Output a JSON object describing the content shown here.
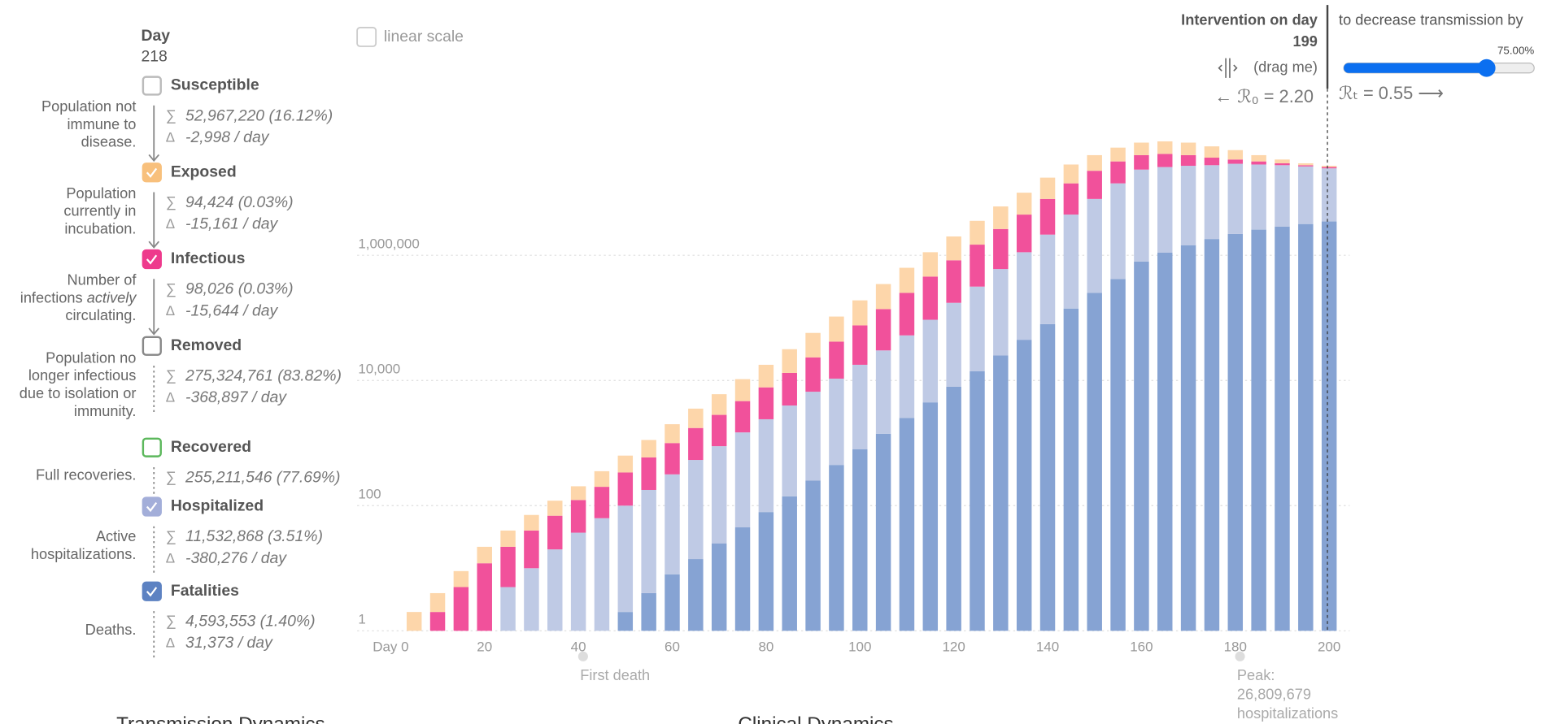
{
  "header": {
    "day_label": "Day",
    "day": 218,
    "linear_scale": "linear scale"
  },
  "panel": {
    "sum_symbol": "∑",
    "delta_symbol": "Δ",
    "compartments": [
      {
        "name": "Susceptible",
        "checked": false,
        "box_color": "#bbbbbb",
        "description": [
          [
            "Population not"
          ],
          [
            "immune to"
          ],
          [
            "disease."
          ]
        ],
        "sum": "52,967,220 (16.12%)",
        "delta": "-2,998 / day"
      },
      {
        "series": 3,
        "checked": true,
        "box_color": "#f8c07c",
        "description": [
          [
            "Population"
          ],
          [
            "currently in"
          ],
          [
            "incubation."
          ]
        ],
        "sum": "94,424 (0.03%)",
        "delta": "-15,161 / day"
      },
      {
        "series": 2,
        "checked": true,
        "box_color": "#ee3a8c",
        "description": [
          [
            "Number of"
          ],
          [
            "infections ",
            "actively"
          ],
          [
            "circulating."
          ]
        ],
        "sum": "98,026 (0.03%)",
        "delta": "-15,644 / day"
      },
      {
        "name": "Removed",
        "checked": false,
        "box_color": "#888888",
        "description": [
          [
            "Population no"
          ],
          [
            "longer infectious"
          ],
          [
            "due to isolation or"
          ],
          [
            "immunity."
          ]
        ],
        "sum": "275,324,761 (83.82%)",
        "delta": "-368,897 / day"
      },
      {
        "name": "Recovered",
        "checked": false,
        "box_color": "#5cb85c",
        "description": [
          [
            "Full recoveries."
          ]
        ],
        "sum": "255,211,546 (77.69%)"
      },
      {
        "series": 1,
        "checked": true,
        "box_color": "#a3aed9",
        "description": [
          [
            "Active"
          ],
          [
            "hospitalizations."
          ]
        ],
        "sum": "11,532,868 (3.51%)",
        "delta": "-380,276 / day"
      },
      {
        "series": 0,
        "checked": true,
        "box_color": "#5d82c2",
        "description": [
          [
            "Deaths."
          ]
        ],
        "sum": "4,593,553 (1.40%)",
        "delta": "31,373 / day"
      }
    ]
  },
  "intervention": {
    "title": "Intervention on day",
    "day": 199,
    "drag": "(drag me)",
    "r0": "← ℛ₀ = 2.20",
    "decrease": "to decrease transmission by",
    "strength": {
      "value": 75,
      "label": "75.00%"
    },
    "rt": "ℛₜ = 0.55 ⟶"
  },
  "chart_data": {
    "type": "stacked_bar",
    "log_scale": true,
    "grid": true,
    "x": [
      5,
      10,
      15,
      20,
      25,
      30,
      35,
      40,
      45,
      50,
      55,
      60,
      65,
      70,
      75,
      80,
      85,
      90,
      95,
      100,
      105,
      110,
      115,
      120,
      125,
      130,
      135,
      140,
      145,
      150,
      155,
      160,
      165,
      170,
      175,
      180,
      185,
      190,
      195,
      200
    ],
    "xlim": [
      0,
      200
    ],
    "xticks": [
      {
        "value": 0,
        "label": "Day 0"
      },
      20,
      40,
      60,
      80,
      100,
      120,
      140,
      160,
      180,
      200
    ],
    "ylim": [
      1,
      100000000
    ],
    "yticks": [
      1,
      100,
      {
        "value": 10000,
        "label": "10,000"
      },
      {
        "value": 1000000,
        "label": "1,000,000"
      }
    ],
    "series": [
      {
        "name": "Fatalities",
        "color": "#86a3d3",
        "values": [
          0,
          0,
          0,
          0,
          0,
          0,
          0,
          0,
          0,
          2,
          4,
          8,
          14,
          25,
          45,
          79,
          141,
          251,
          447,
          794,
          1410,
          2510,
          4470,
          7940,
          14100,
          25100,
          44700,
          79400,
          141000,
          251000,
          417000,
          794000,
          1100000,
          1450000,
          1820000,
          2190000,
          2570000,
          2880000,
          3160000,
          3470000
        ]
      },
      {
        "name": "Hospitalized",
        "color": "#bfcae5",
        "values": [
          0,
          0,
          0,
          0,
          5,
          10,
          20,
          37,
          63,
          98,
          174,
          308,
          523,
          866,
          1435,
          2321,
          3839,
          6359,
          10253,
          17006,
          28790,
          49990,
          88830,
          166060,
          301900,
          577900,
          1075300,
          2060600,
          4329000,
          7689000,
          13683000,
          22606000,
          24600000,
          25450000,
          25680000,
          26800000,
          25630000,
          24620000,
          23140000,
          21030000
        ]
      },
      {
        "name": "Infectious",
        "color": "#f1519b",
        "values": [
          0,
          2,
          5,
          12,
          17,
          30,
          49,
          86,
          137,
          239,
          412,
          684,
          1203,
          1929,
          3200,
          5360,
          9220,
          16790,
          31000,
          58100,
          107800,
          198500,
          363700,
          658000,
          1164000,
          2027000,
          3350000,
          5800000,
          9630000,
          14460000,
          17500000,
          16400000,
          16000000,
          12900000,
          8800000,
          4910000,
          3400000,
          2000000,
          1200000,
          1200000
        ]
      },
      {
        "name": "Exposed",
        "color": "#fdd6aa",
        "values": [
          2,
          2,
          4,
          10,
          18,
          31,
          51,
          81,
          155,
          291,
          530,
          1000,
          1810,
          3210,
          5820,
          10040,
          18400,
          34100,
          63300,
          114600,
          209000,
          380000,
          663000,
          1168000,
          2070000,
          3400000,
          5530000,
          9460000,
          14100000,
          17400000,
          20900000,
          23300000,
          24400000,
          23300000,
          18700000,
          14000000,
          8200000,
          4400000,
          2000000,
          1200000
        ]
      }
    ],
    "annotations": [
      {
        "day": 41,
        "lines": [
          "First death"
        ]
      },
      {
        "day": 181,
        "lines": [
          "Peak:",
          "26,809,679",
          "hospitalizations"
        ]
      }
    ],
    "section_titles": [
      "Transmission Dynamics",
      "Clinical Dynamics"
    ]
  }
}
